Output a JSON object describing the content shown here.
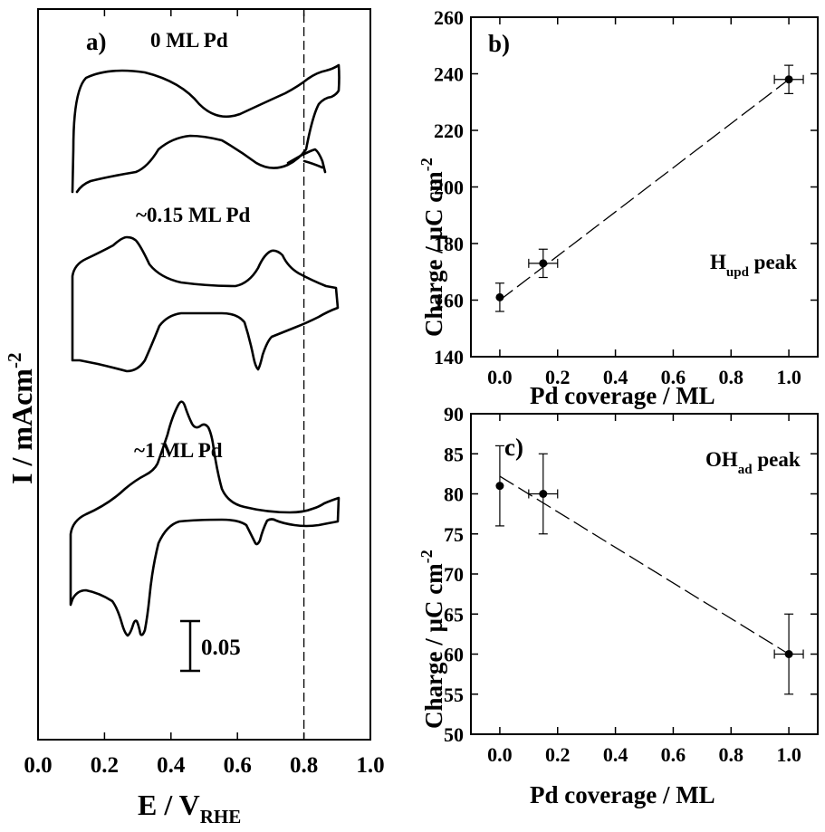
{
  "chart_data": [
    {
      "type": "line",
      "panel_label": "a)",
      "xlabel_main": "E / V",
      "xlabel_sub": "RHE",
      "ylabel": "I / mAcm",
      "ylabel_sup": "-2",
      "xlim": [
        0,
        1.0
      ],
      "xticks": [
        "0.0",
        "0.2",
        "0.4",
        "0.6",
        "0.8",
        "1.0"
      ],
      "reference_line_x": 0.8,
      "scale_bar_label": "0.05",
      "series": [
        {
          "name": "0 ML Pd"
        },
        {
          "name": "~0.15 ML Pd"
        },
        {
          "name": "~1 ML Pd"
        }
      ]
    },
    {
      "type": "scatter",
      "panel_label": "b)",
      "annotation_main": "H",
      "annotation_sub": "upd",
      "annotation_rest": " peak",
      "xlabel": "Pd coverage / ML",
      "ylabel": "Charge / µC cm",
      "ylabel_sup": "-2",
      "xlim": [
        -0.1,
        1.1
      ],
      "ylim": [
        140,
        260
      ],
      "xticks": [
        "0.0",
        "0.2",
        "0.4",
        "0.6",
        "0.8",
        "1.0"
      ],
      "yticks": [
        "140",
        "160",
        "180",
        "200",
        "220",
        "240",
        "260"
      ],
      "x": [
        0.0,
        0.15,
        1.0
      ],
      "y": [
        161,
        173,
        238
      ],
      "y_err": [
        5,
        5,
        5
      ],
      "x_err": [
        0.0,
        0.05,
        0.05
      ],
      "fit_line": {
        "x": [
          0.0,
          1.0
        ],
        "y": [
          160,
          238
        ]
      }
    },
    {
      "type": "scatter",
      "panel_label": "c)",
      "annotation_main": "OH",
      "annotation_sub": "ad",
      "annotation_rest": " peak",
      "xlabel": "Pd coverage / ML",
      "ylabel": "Charge / µC cm",
      "ylabel_sup": "-2",
      "xlim": [
        -0.1,
        1.1
      ],
      "ylim": [
        50,
        90
      ],
      "xticks": [
        "0.0",
        "0.2",
        "0.4",
        "0.6",
        "0.8",
        "1.0"
      ],
      "yticks": [
        "50",
        "55",
        "60",
        "65",
        "70",
        "75",
        "80",
        "85",
        "90"
      ],
      "x": [
        0.0,
        0.15,
        1.0
      ],
      "y": [
        81,
        80,
        60
      ],
      "y_err": [
        5,
        5,
        5
      ],
      "x_err": [
        0.0,
        0.05,
        0.05
      ],
      "fit_line": {
        "x": [
          0.0,
          1.0
        ],
        "y": [
          82.2,
          60
        ]
      }
    }
  ]
}
